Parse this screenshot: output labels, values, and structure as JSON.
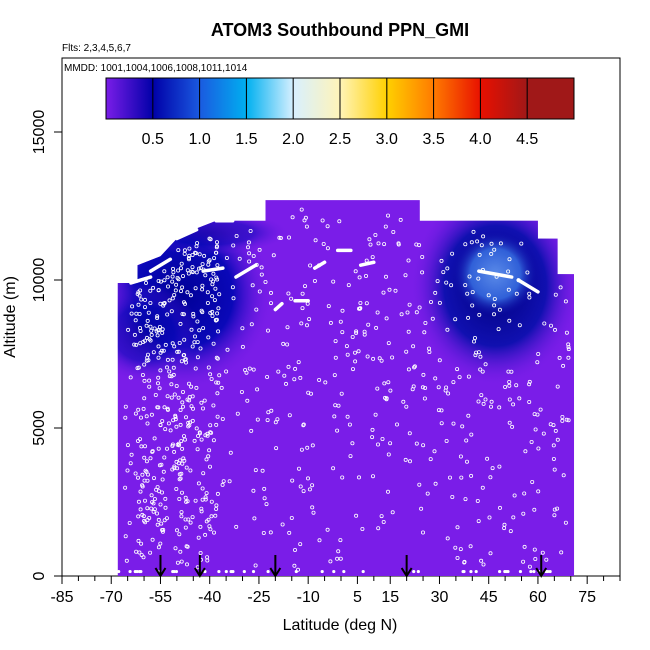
{
  "chart_data": {
    "type": "heatmap",
    "title": "ATOM3 Southbound PPN_GMI",
    "subtitle_flights": "Flts: 2,3,4,5,6,7",
    "subtitle_dates": "MMDD: 1001,1004,1006,1008,1011,1014",
    "xlabel": "Latitude (deg N)",
    "ylabel": "Altitude (m)",
    "xlim": [
      -85,
      85
    ],
    "ylim": [
      0,
      17500
    ],
    "x_ticks": [
      -85,
      -70,
      -55,
      -40,
      -25,
      -10,
      5,
      15,
      30,
      45,
      60,
      75
    ],
    "x_minor_ticks": [
      -80,
      -75,
      -65,
      -60,
      -50,
      -45,
      -35,
      -30,
      -20,
      -15,
      -5,
      0,
      10,
      20,
      25,
      35,
      40,
      50,
      55,
      65,
      70,
      80,
      85
    ],
    "y_ticks": [
      0,
      5000,
      10000,
      15000
    ],
    "colorbar": {
      "range": [
        0,
        5
      ],
      "ticks": [
        0.5,
        1.0,
        1.5,
        2.0,
        2.5,
        3.0,
        3.5,
        4.0,
        4.5
      ],
      "tick_labels": [
        "0.5",
        "1.0",
        "1.5",
        "2.0",
        "2.5",
        "3.0",
        "3.5",
        "4.0",
        "4.5"
      ],
      "colors": [
        "#7a1de8",
        "#0000a8",
        "#1a5ae0",
        "#00b0f0",
        "#d8f0ff",
        "#fff4b8",
        "#ffd000",
        "#ff7a00",
        "#e81000",
        "#a01818"
      ]
    },
    "background_value": 0.15,
    "field_extent": {
      "lat_range": [
        -68,
        71
      ],
      "surface_alt": 0,
      "top_profile": [
        {
          "lat": -68,
          "alt": 9900
        },
        {
          "lat": -62,
          "alt": 9900
        },
        {
          "lat": -62,
          "alt": 10500
        },
        {
          "lat": -55,
          "alt": 10800
        },
        {
          "lat": -50,
          "alt": 11400
        },
        {
          "lat": -45,
          "alt": 11700
        },
        {
          "lat": -38,
          "alt": 12000
        },
        {
          "lat": -23,
          "alt": 12000
        },
        {
          "lat": -23,
          "alt": 12700
        },
        {
          "lat": 24,
          "alt": 12700
        },
        {
          "lat": 24,
          "alt": 12000
        },
        {
          "lat": 60,
          "alt": 12000
        },
        {
          "lat": 60,
          "alt": 11400
        },
        {
          "lat": 66,
          "alt": 11400
        },
        {
          "lat": 66,
          "alt": 10200
        },
        {
          "lat": 71,
          "alt": 10200
        }
      ]
    },
    "features": [
      {
        "lat": -48,
        "alt": 9500,
        "value": 0.5
      },
      {
        "lat": 47,
        "alt": 9800,
        "value": 1.0
      }
    ],
    "markers_lat": [
      -55,
      -43,
      -20,
      20,
      61
    ]
  }
}
